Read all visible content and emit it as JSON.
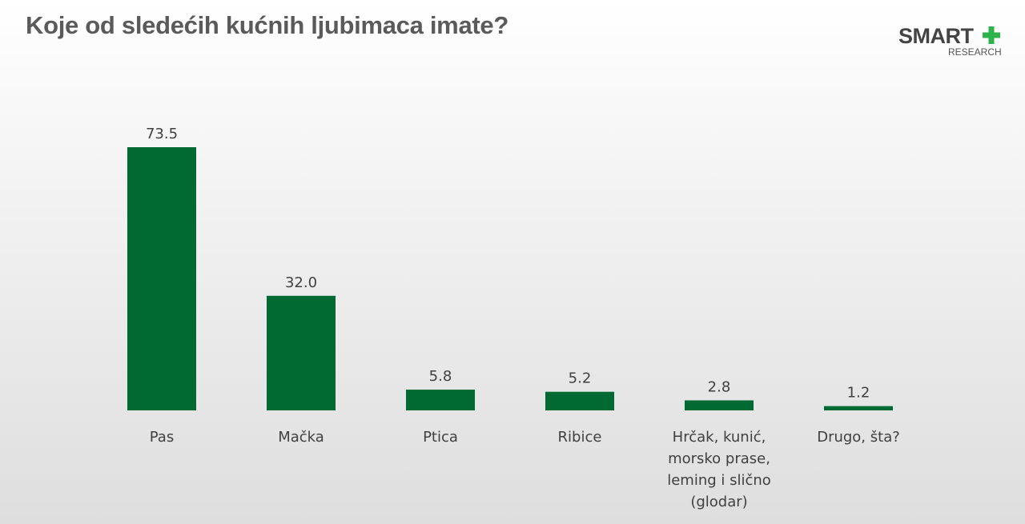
{
  "header": {
    "title": "Koje od sledećih kućnih ljubimaca imate?"
  },
  "logo": {
    "word": "SMART",
    "sub": "RESEARCH",
    "plus_color": "#2db34a"
  },
  "chart_data": {
    "type": "bar",
    "categories": [
      [
        "Pas"
      ],
      [
        "Mačka"
      ],
      [
        "Ptica"
      ],
      [
        "Ribice"
      ],
      [
        "Hrčak, kunić,",
        "morsko prase,",
        "leming i slično",
        "(glodar)"
      ],
      [
        "Drugo, šta?"
      ]
    ],
    "values": [
      73.5,
      32.0,
      5.8,
      5.2,
      2.8,
      1.2
    ],
    "value_labels": [
      "73.5",
      "32.0",
      "5.8",
      "5.2",
      "2.8",
      "1.2"
    ],
    "bar_color": "#006a32",
    "grid": false,
    "legend": "none",
    "ylim": [
      0,
      73.5
    ]
  }
}
